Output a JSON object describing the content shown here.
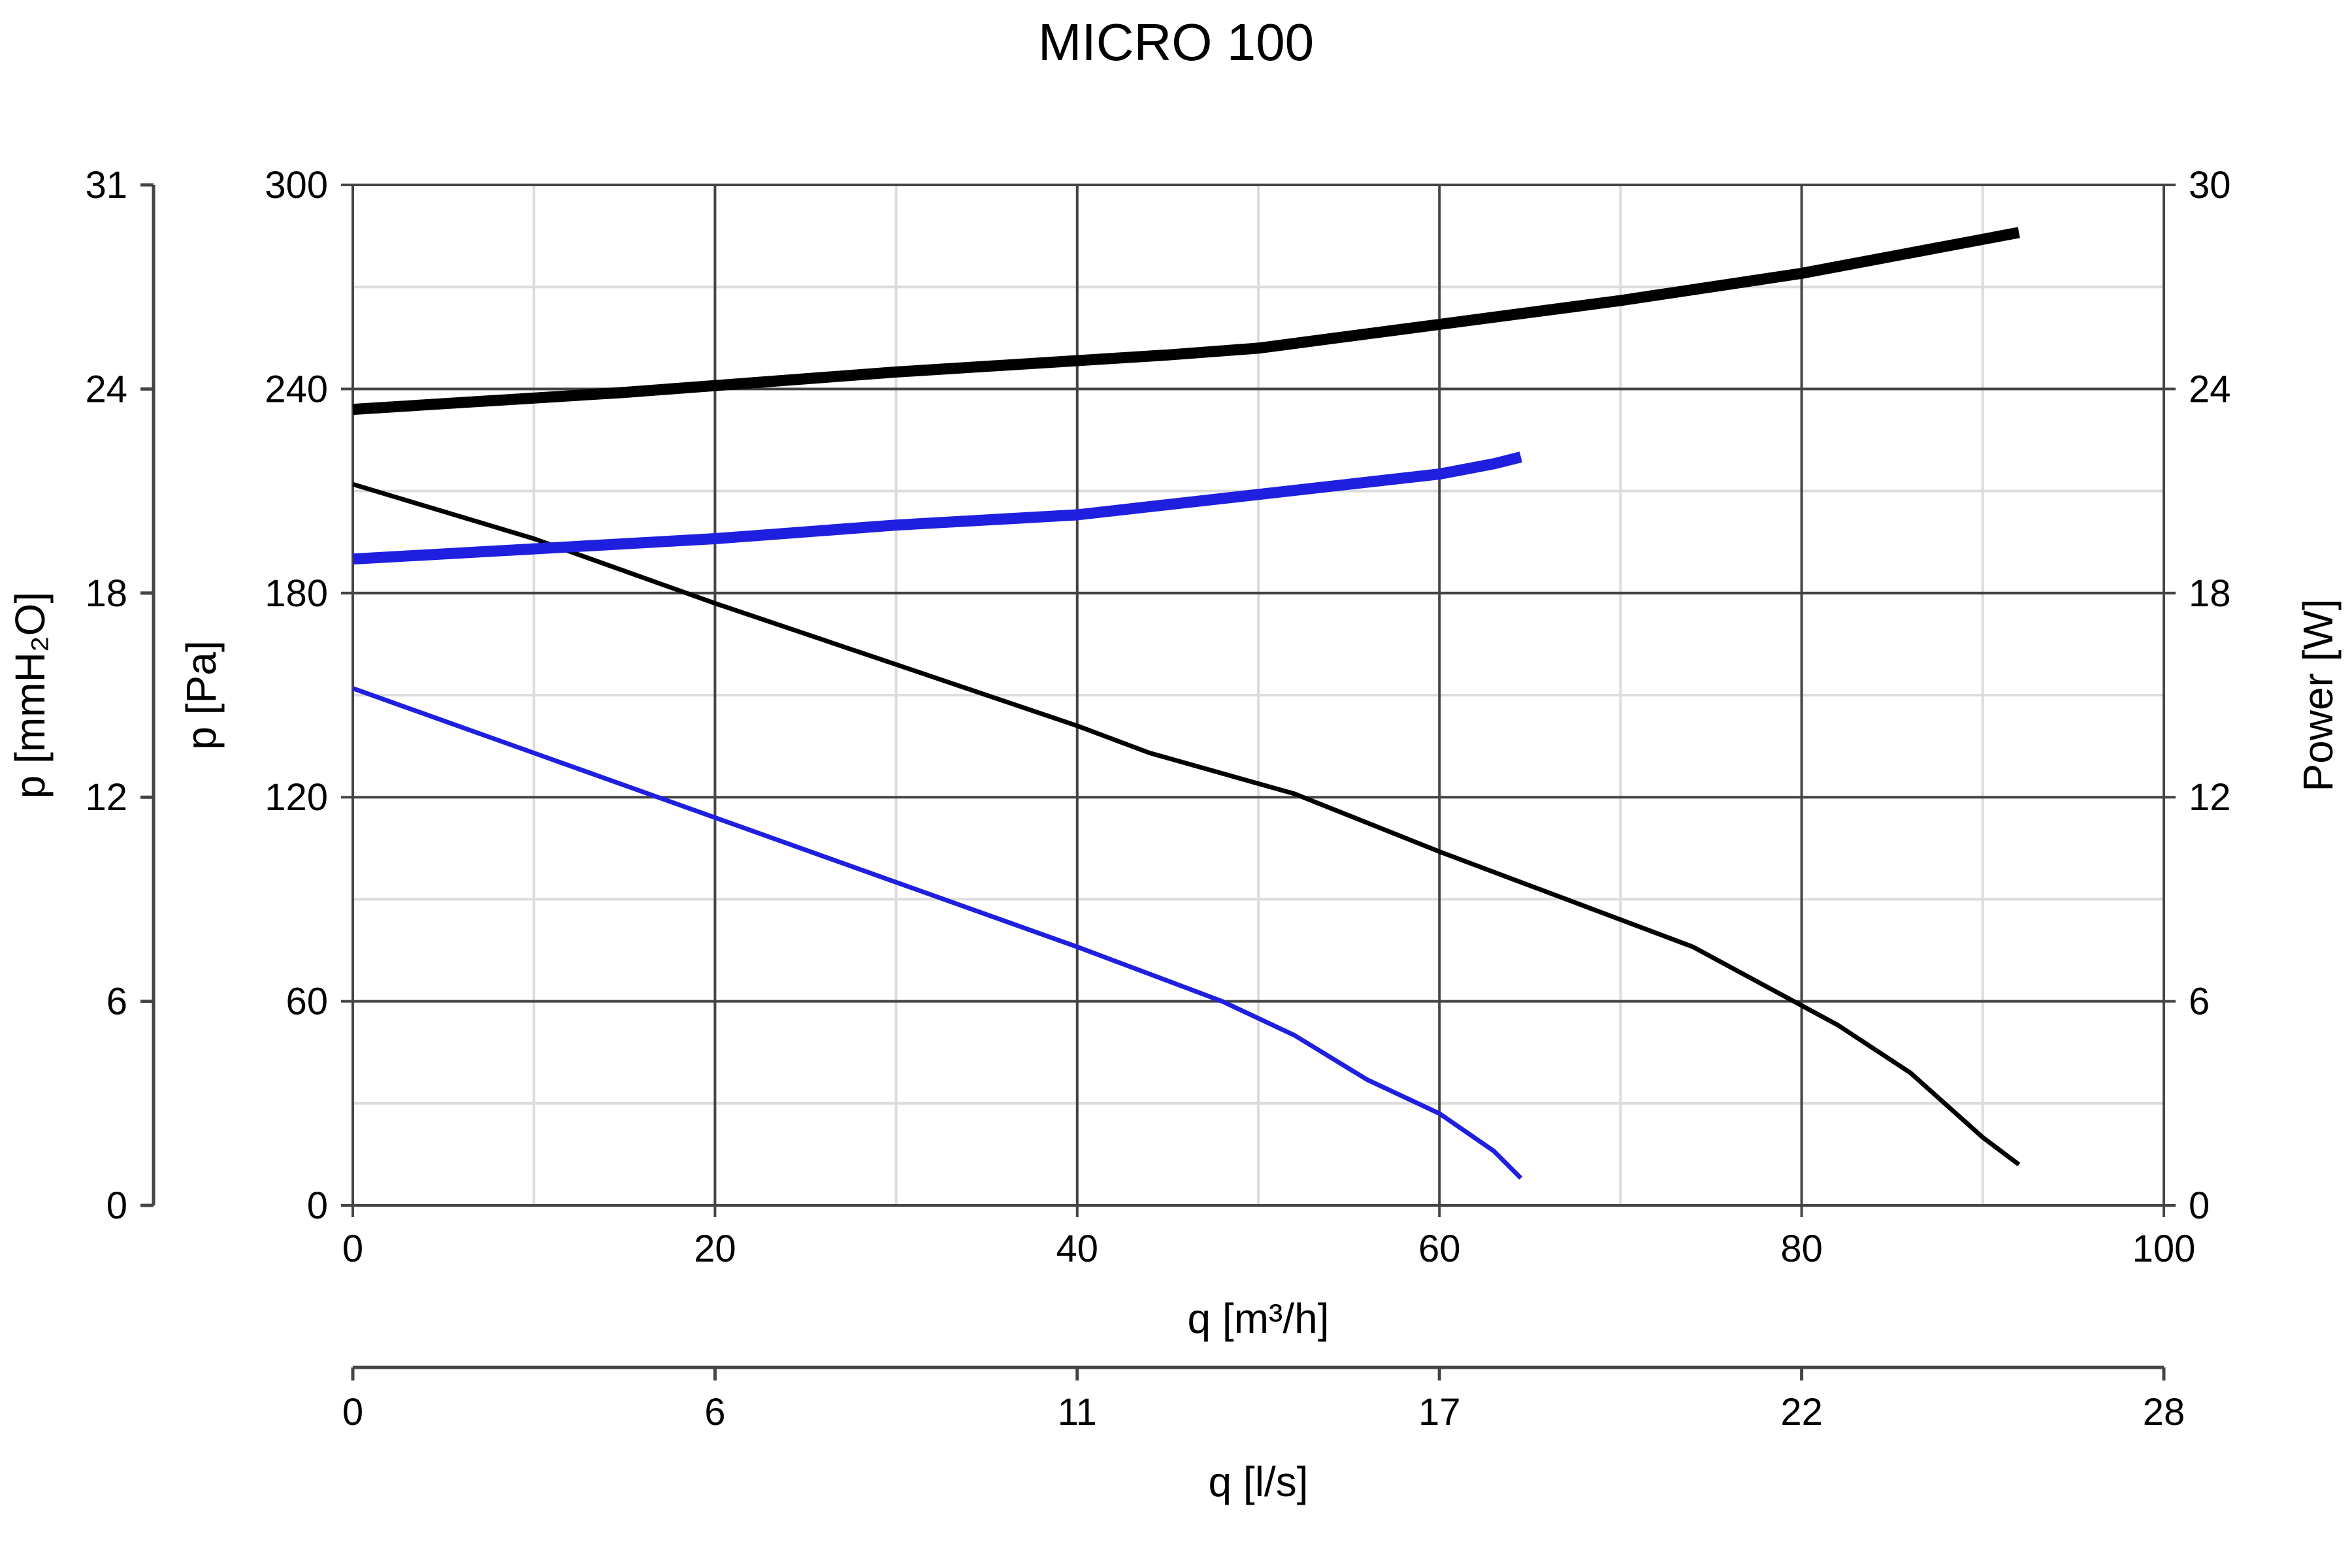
{
  "chart_data": {
    "type": "line",
    "title": "MICRO 100",
    "x": {
      "label": "q [m³/h]",
      "range": [
        0,
        100
      ],
      "ticks": [
        0,
        20,
        40,
        60,
        80,
        100
      ],
      "minor_step": 10
    },
    "x2": {
      "label": "q [l/s]",
      "ticks": [
        {
          "value": 0,
          "label": "0"
        },
        {
          "value": 20,
          "label": "6"
        },
        {
          "value": 40,
          "label": "11"
        },
        {
          "value": 60,
          "label": "17"
        },
        {
          "value": 80,
          "label": "22"
        },
        {
          "value": 100,
          "label": "28"
        }
      ]
    },
    "y": {
      "label": "p [Pa]",
      "range": [
        0,
        300
      ],
      "ticks": [
        0,
        60,
        120,
        180,
        240,
        300
      ],
      "minor_step": 30
    },
    "y_left_outer": {
      "label": "p [mmH₂O]",
      "ticks": [
        {
          "value": 0,
          "label": "0"
        },
        {
          "value": 60,
          "label": "6"
        },
        {
          "value": 120,
          "label": "12"
        },
        {
          "value": 180,
          "label": "18"
        },
        {
          "value": 240,
          "label": "24"
        },
        {
          "value": 300,
          "label": "31"
        }
      ]
    },
    "y_right": {
      "label": "Power [W]",
      "range": [
        0,
        30
      ],
      "ticks": [
        0,
        6,
        12,
        18,
        24,
        30
      ]
    },
    "series": [
      {
        "name": "pressure-high",
        "axis": "p",
        "color": "#000000",
        "weight": "thin",
        "points": [
          [
            0,
            212
          ],
          [
            10,
            196
          ],
          [
            20,
            177
          ],
          [
            30,
            159
          ],
          [
            40,
            141
          ],
          [
            44,
            133
          ],
          [
            52,
            121
          ],
          [
            60,
            104
          ],
          [
            68,
            88
          ],
          [
            74,
            76
          ],
          [
            82,
            53
          ],
          [
            86,
            39
          ],
          [
            90,
            20
          ],
          [
            92,
            12
          ]
        ]
      },
      {
        "name": "pressure-low",
        "axis": "p",
        "color": "#1f1fe0",
        "weight": "thin",
        "points": [
          [
            0,
            152
          ],
          [
            10,
            133
          ],
          [
            20,
            114
          ],
          [
            30,
            95
          ],
          [
            40,
            76
          ],
          [
            44,
            68
          ],
          [
            48,
            60
          ],
          [
            52,
            50
          ],
          [
            56,
            37
          ],
          [
            60,
            27
          ],
          [
            63,
            16
          ],
          [
            64.5,
            8
          ]
        ]
      },
      {
        "name": "power-high",
        "axis": "power",
        "color": "#000000",
        "weight": "thick",
        "points": [
          [
            0,
            23.4
          ],
          [
            15,
            23.9
          ],
          [
            30,
            24.5
          ],
          [
            45,
            25.0
          ],
          [
            50,
            25.2
          ],
          [
            60,
            25.9
          ],
          [
            70,
            26.6
          ],
          [
            80,
            27.4
          ],
          [
            90,
            28.4
          ],
          [
            92,
            28.6
          ]
        ]
      },
      {
        "name": "power-low",
        "axis": "power",
        "color": "#1f1fe0",
        "weight": "thick",
        "points": [
          [
            0,
            19.0
          ],
          [
            10,
            19.3
          ],
          [
            20,
            19.6
          ],
          [
            30,
            20.0
          ],
          [
            40,
            20.3
          ],
          [
            50,
            20.9
          ],
          [
            60,
            21.5
          ],
          [
            63,
            21.8
          ],
          [
            64.5,
            22.0
          ]
        ]
      }
    ]
  }
}
